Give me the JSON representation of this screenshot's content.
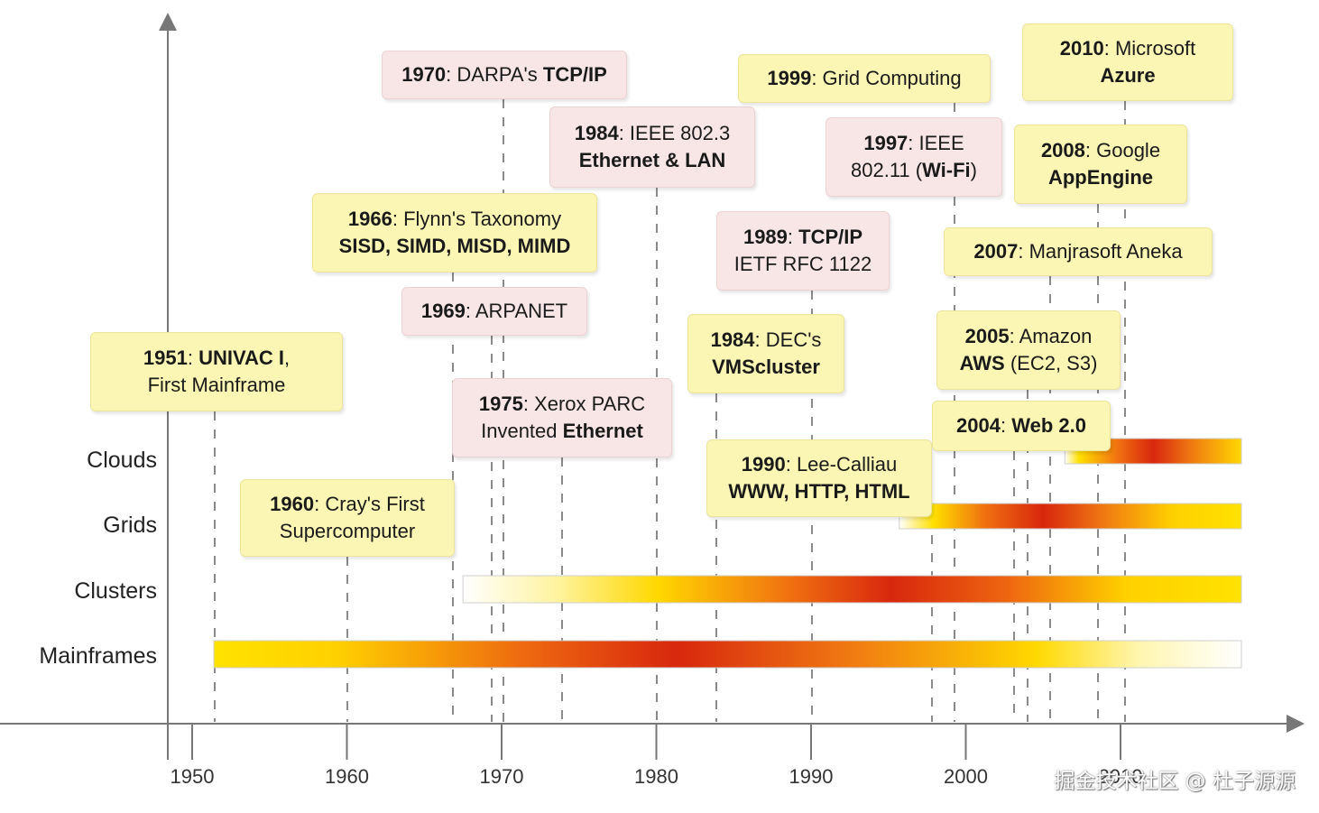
{
  "axis": {
    "ticks": [
      "1950",
      "1960",
      "1970",
      "1980",
      "1990",
      "2000",
      "2010"
    ]
  },
  "rows": [
    {
      "key": "clouds",
      "label": "Clouds"
    },
    {
      "key": "grids",
      "label": "Grids"
    },
    {
      "key": "clusters",
      "label": "Clusters"
    },
    {
      "key": "mainframes",
      "label": "Mainframes"
    }
  ],
  "events": [
    {
      "id": "univac",
      "year": "1951",
      "lines": [
        [
          "",
          ":  ",
          "b:UNIVAC I",
          ","
        ],
        [
          "First Mainframe"
        ]
      ],
      "color": "y"
    },
    {
      "id": "cray",
      "year": "1960",
      "lines": [
        [
          "",
          ":  Cray's First"
        ],
        [
          "Supercomputer"
        ]
      ],
      "color": "y"
    },
    {
      "id": "flynn",
      "year": "1966",
      "lines": [
        [
          "",
          ": Flynn's Taxonomy"
        ],
        [
          "b:SISD, SIMD, MISD, MIMD"
        ]
      ],
      "color": "y"
    },
    {
      "id": "arpanet",
      "year": "1969",
      "lines": [
        [
          "",
          ": ARPANET"
        ]
      ],
      "color": "p"
    },
    {
      "id": "darpa",
      "year": "1970",
      "lines": [
        [
          "",
          ": DARPA's ",
          "b:TCP/IP"
        ]
      ],
      "color": "p"
    },
    {
      "id": "xerox",
      "year": "1975",
      "lines": [
        [
          "",
          ":  Xerox PARC"
        ],
        [
          "Invented ",
          "b:Ethernet"
        ]
      ],
      "color": "p"
    },
    {
      "id": "ieee8023",
      "year": "1984",
      "lines": [
        [
          "",
          ": IEEE 802.3"
        ],
        [
          "b:Ethernet & LAN"
        ]
      ],
      "color": "p"
    },
    {
      "id": "dec",
      "year": "1984",
      "lines": [
        [
          "",
          ": DEC's"
        ],
        [
          "b:VMScluster"
        ]
      ],
      "color": "y"
    },
    {
      "id": "tcpip1989",
      "year": "1989",
      "lines": [
        [
          "",
          ": ",
          "b:TCP/IP"
        ],
        [
          "IETF RFC 1122"
        ]
      ],
      "color": "p"
    },
    {
      "id": "www",
      "year": "1990",
      "lines": [
        [
          "",
          ": Lee-Calliau"
        ],
        [
          "b:WWW, HTTP, HTML"
        ]
      ],
      "color": "y"
    },
    {
      "id": "wifi",
      "year": "1997",
      "lines": [
        [
          "",
          ": IEEE"
        ],
        [
          "802.11 (",
          "b:Wi-Fi",
          ")"
        ]
      ],
      "color": "p"
    },
    {
      "id": "grid",
      "year": "1999",
      "lines": [
        [
          "",
          ": Grid Computing"
        ]
      ],
      "color": "y"
    },
    {
      "id": "web20",
      "year": "2004",
      "lines": [
        [
          "",
          ": ",
          "b:Web 2.0"
        ]
      ],
      "color": "y"
    },
    {
      "id": "aws",
      "year": "2005",
      "lines": [
        [
          "",
          ": Amazon"
        ],
        [
          "b:AWS",
          " (EC2, S3)"
        ]
      ],
      "color": "y"
    },
    {
      "id": "aneka",
      "year": "2007",
      "lines": [
        [
          "",
          ": Manjrasoft Aneka"
        ]
      ],
      "color": "y"
    },
    {
      "id": "appengine",
      "year": "2008",
      "lines": [
        [
          "",
          ": Google"
        ],
        [
          "b:AppEngine"
        ]
      ],
      "color": "y"
    },
    {
      "id": "azure",
      "year": "2010",
      "lines": [
        [
          "",
          ": Microsoft"
        ],
        [
          "b:Azure"
        ]
      ],
      "color": "y"
    }
  ],
  "bands": [
    {
      "row": "clouds",
      "start": 2006.4,
      "end": 2018.8
    },
    {
      "row": "grids",
      "start": 1995.7,
      "end": 2018.8
    },
    {
      "row": "clusters",
      "start": 1967.5,
      "end": 2018.8
    },
    {
      "row": "mainframes",
      "start": 1951.4,
      "end": 2018.8
    }
  ],
  "colors": {
    "yellow": "#fbf6b4",
    "pink": "#f8e6e6",
    "orange": "#f07a10",
    "red": "#d8270e",
    "gold": "#ffd800"
  },
  "watermark": "掘金技术社区 @ 杜子源源"
}
